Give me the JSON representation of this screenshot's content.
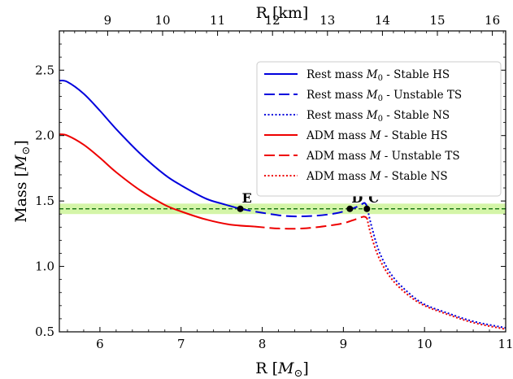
{
  "chart_data": {
    "type": "line",
    "xlabel": "R [M⊙]",
    "x2label": "R [km]",
    "ylabel": "Mass [M⊙]",
    "xlim": [
      5.5,
      11.0
    ],
    "ylim": [
      0.5,
      2.8
    ],
    "x_ticks": [
      6,
      7,
      8,
      9,
      10,
      11
    ],
    "x2_ticks": [
      9,
      10,
      11,
      12,
      13,
      14,
      15,
      16
    ],
    "y_ticks": [
      0.5,
      1.0,
      1.5,
      2.0,
      2.5
    ],
    "km_per_msun": 1.4766,
    "grid": false,
    "legend_position": "top-right",
    "series": [
      {
        "name": "Rest mass M0 - Stable HS",
        "color": "#0000dd",
        "style": "solid",
        "x": [
          5.5,
          5.6,
          5.8,
          6.0,
          6.2,
          6.5,
          6.8,
          7.0,
          7.3,
          7.5,
          7.73
        ],
        "y": [
          2.42,
          2.41,
          2.32,
          2.19,
          2.05,
          1.86,
          1.7,
          1.62,
          1.52,
          1.48,
          1.44
        ]
      },
      {
        "name": "Rest mass M0 - Unstable TS",
        "color": "#0000dd",
        "style": "dashed",
        "x": [
          7.73,
          8.0,
          8.3,
          8.6,
          8.9,
          9.1,
          9.2,
          9.26,
          9.29
        ],
        "y": [
          1.44,
          1.41,
          1.385,
          1.385,
          1.405,
          1.44,
          1.465,
          1.485,
          1.46
        ]
      },
      {
        "name": "Rest mass M0 - Stable NS",
        "color": "#0000dd",
        "style": "dotted",
        "x": [
          9.29,
          9.35,
          9.45,
          9.6,
          9.8,
          10.0,
          10.3,
          10.6,
          11.0
        ],
        "y": [
          1.46,
          1.3,
          1.1,
          0.93,
          0.8,
          0.71,
          0.64,
          0.58,
          0.53
        ]
      },
      {
        "name": "ADM mass M - Stable HS",
        "color": "#ee0000",
        "style": "solid",
        "x": [
          5.5,
          5.6,
          5.8,
          6.0,
          6.2,
          6.5,
          6.8,
          7.0,
          7.3,
          7.6,
          7.9
        ],
        "y": [
          2.01,
          2.0,
          1.93,
          1.83,
          1.72,
          1.58,
          1.47,
          1.42,
          1.36,
          1.32,
          1.305
        ]
      },
      {
        "name": "ADM mass M - Unstable TS",
        "color": "#ee0000",
        "style": "dashed",
        "x": [
          7.9,
          8.2,
          8.5,
          8.8,
          9.0,
          9.15,
          9.25,
          9.29
        ],
        "y": [
          1.305,
          1.29,
          1.29,
          1.31,
          1.33,
          1.36,
          1.38,
          1.37
        ]
      },
      {
        "name": "ADM mass M - Stable NS",
        "color": "#ee0000",
        "style": "dotted",
        "x": [
          9.29,
          9.35,
          9.45,
          9.6,
          9.8,
          10.0,
          10.3,
          10.6,
          11.0
        ],
        "y": [
          1.37,
          1.22,
          1.05,
          0.9,
          0.78,
          0.7,
          0.63,
          0.57,
          0.52
        ]
      }
    ],
    "legend_labels": [
      {
        "prefix": "Rest mass ",
        "var": "M",
        "sub": "0",
        "suffix": " - Stable HS"
      },
      {
        "prefix": "Rest mass ",
        "var": "M",
        "sub": "0",
        "suffix": " - Unstable TS"
      },
      {
        "prefix": "Rest mass ",
        "var": "M",
        "sub": "0",
        "suffix": " - Stable NS"
      },
      {
        "prefix": "ADM mass ",
        "var": "M",
        "sub": "",
        "suffix": " - Stable HS"
      },
      {
        "prefix": "ADM mass ",
        "var": "M",
        "sub": "",
        "suffix": " - Unstable TS"
      },
      {
        "prefix": "ADM mass ",
        "var": "M",
        "sub": "",
        "suffix": " - Stable NS"
      }
    ],
    "reference_line": {
      "y": 1.44,
      "color": "#006400",
      "style": "dashed"
    },
    "reference_band": {
      "y_range": [
        1.4,
        1.48
      ],
      "color": "#d4f5a8"
    },
    "points": [
      {
        "label": "E",
        "x": 7.73,
        "y": 1.44
      },
      {
        "label": "D",
        "x": 9.08,
        "y": 1.44
      },
      {
        "label": "C",
        "x": 9.29,
        "y": 1.44
      }
    ]
  }
}
